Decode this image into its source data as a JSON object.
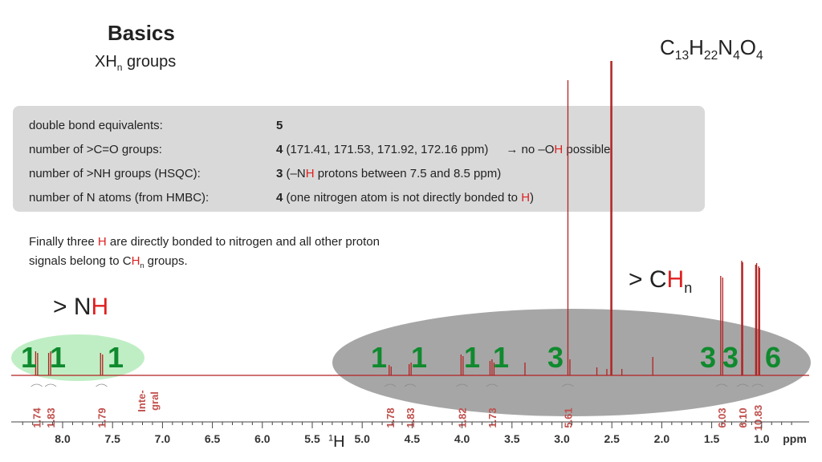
{
  "header": {
    "title": "Basics",
    "subtitle_main": "XH",
    "subtitle_sub": "n",
    "subtitle_rest": " groups",
    "formula": {
      "C": "C",
      "C_n": "13",
      "H": "H",
      "H_n": "22",
      "N": "N",
      "N_n": "4",
      "O": "O",
      "O_n": "4"
    }
  },
  "info_rows": [
    {
      "label": "double bond equivalents:",
      "value_bold": "5",
      "value_rest": ""
    },
    {
      "label": "number of >C=O groups:",
      "value_bold": "4",
      "value_rest": " (171.41, 171.53, 171.92, 172.16 ppm)",
      "arrow_text": "→ no –O",
      "arrow_h": "H",
      "arrow_after": " possible"
    },
    {
      "label": "number of >NH groups (HSQC):",
      "value_bold": "3",
      "value_pre": " (–N",
      "value_h": "H",
      "value_after": " protons between 7.5 and 8.5 ppm)"
    },
    {
      "label": "number of N atoms (from HMBC):",
      "value_bold": "4",
      "value_pre": " (one nitrogen atom is not directly bonded to ",
      "value_h": "H",
      "value_after": ")"
    }
  ],
  "note": {
    "part1": "Finally three ",
    "h": "H",
    "part2": " are directly bonded to nitrogen and all other proton",
    "line2a": "signals belong to C",
    "line2h": "H",
    "line2sub": "n",
    "line2b": " groups."
  },
  "labels": {
    "nh_prefix": "> N",
    "nh_h": "H",
    "chn_prefix": "> C",
    "chn_h": "H",
    "chn_sub": "n"
  },
  "proton_counts": [
    {
      "text": "1",
      "color": "#0f8a2e"
    },
    {
      "text": "1",
      "color": "#0f8a2e"
    },
    {
      "text": "1",
      "color": "#0f8a2e"
    },
    {
      "text": "1",
      "color": "#0f8a2e"
    },
    {
      "text": "1",
      "color": "#0f8a2e"
    },
    {
      "text": "1",
      "color": "#0f8a2e"
    },
    {
      "text": "1",
      "color": "#0f8a2e"
    },
    {
      "text": "3",
      "color": "#0f8a2e"
    },
    {
      "text": "3",
      "color": "#0f8a2e"
    },
    {
      "text": "3",
      "color": "#0f8a2e"
    },
    {
      "text": "6",
      "color": "#0f8a2e"
    }
  ],
  "integrals": [
    {
      "ppm": 8.26,
      "text": "1.74"
    },
    {
      "ppm": 8.12,
      "text": "1.83"
    },
    {
      "ppm": 7.61,
      "text": "1.79"
    },
    {
      "ppm": 4.72,
      "text": "1.78"
    },
    {
      "ppm": 4.52,
      "text": "1.83"
    },
    {
      "ppm": 4.0,
      "text": "1.82"
    },
    {
      "ppm": 3.7,
      "text": "1.73"
    },
    {
      "ppm": 2.94,
      "text": "5.61"
    },
    {
      "ppm": 1.4,
      "text": "6.03"
    },
    {
      "ppm": 1.19,
      "text": "6.10"
    },
    {
      "ppm": 1.04,
      "text": "10.83"
    }
  ],
  "integral_header": [
    "Inte-",
    "gral"
  ],
  "axis": {
    "ticks": [
      "8.0",
      "7.5",
      "7.0",
      "6.5",
      "6.0",
      "5.5",
      "5.0",
      "4.5",
      "4.0",
      "3.5",
      "3.0",
      "2.5",
      "2.0",
      "1.5",
      "1.0"
    ],
    "unit": "ppm",
    "nucleus_sup": "1",
    "nucleus": "H"
  },
  "colors": {
    "spectrum": "#b22222",
    "integral": "#c0504d",
    "count": "#0f8a2e",
    "highlight_h": "#e02020"
  }
}
